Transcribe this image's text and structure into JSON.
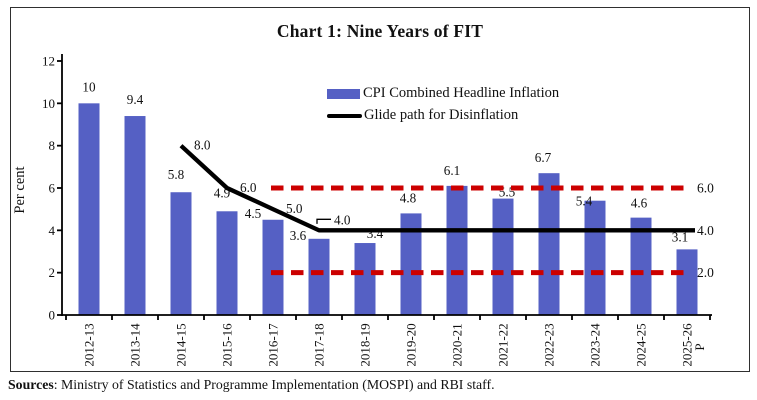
{
  "title": "Chart 1: Nine Years of  FIT",
  "colors": {
    "bar": "#5560C4",
    "glide_line": "#000000",
    "band": "#CC0000",
    "axis": "#000000",
    "text": "#111111"
  },
  "legend": {
    "items": [
      {
        "label": "CPI Combined Headline Inflation",
        "swatch": "bar"
      },
      {
        "label": "Glide path for Disinflation",
        "swatch": "line"
      }
    ]
  },
  "source": {
    "label": "Sources",
    "rest": ": Ministry of Statistics and Programme Implementation (MOSPI) and RBI staff."
  },
  "chart_data": {
    "type": "bar",
    "title": "Chart 1: Nine Years of FIT",
    "ylabel": "Per cent",
    "ylim": [
      0,
      12
    ],
    "yticks": [
      0,
      2,
      4,
      6,
      8,
      10,
      12
    ],
    "grid": false,
    "legend_position": "top-right-inside",
    "categories": [
      "2012-13",
      "2013-14",
      "2014-15",
      "2015-16",
      "2016-17",
      "2017-18",
      "2018-19",
      "2019-20",
      "2020-21",
      "2021-22",
      "2022-23",
      "2023-24",
      "2024-25",
      "2025-26"
    ],
    "projection_suffix": {
      "category": "2025-26",
      "text": "P"
    },
    "series": [
      {
        "name": "CPI Combined Headline Inflation",
        "type": "bar",
        "color": "#5560C4",
        "values": [
          10,
          9.4,
          5.8,
          4.9,
          4.5,
          3.6,
          3.4,
          4.8,
          6.1,
          5.5,
          6.7,
          5.4,
          4.6,
          3.1
        ],
        "labels": [
          "10",
          "9.4",
          "5.8",
          "4.9",
          "4.5",
          "3.6",
          "3.4",
          "4.8",
          "6.1",
          "5.5",
          "6.7",
          "5.4",
          "4.6",
          "3.1"
        ]
      },
      {
        "name": "Glide path for Disinflation",
        "type": "line",
        "color": "#000000",
        "values": [
          null,
          null,
          8.0,
          6.0,
          5.0,
          4.0,
          4.0,
          4.0,
          4.0,
          4.0,
          4.0,
          4.0,
          4.0,
          4.0
        ],
        "point_labels": [
          {
            "category": "2014-15",
            "text": "8.0"
          },
          {
            "category": "2015-16",
            "text": "6.0"
          },
          {
            "category": "2016-17",
            "text": "5.0"
          },
          {
            "category": "2017-18",
            "text": "4.0",
            "leader": true
          },
          {
            "category": "2025-26",
            "text": "4.0",
            "at_axis_right": true
          }
        ]
      }
    ],
    "reference_lines": [
      {
        "value": 6.0,
        "label": "6.0",
        "color": "#CC0000",
        "style": "dashed"
      },
      {
        "value": 2.0,
        "label": "2.0",
        "color": "#CC0000",
        "style": "dashed"
      }
    ]
  }
}
